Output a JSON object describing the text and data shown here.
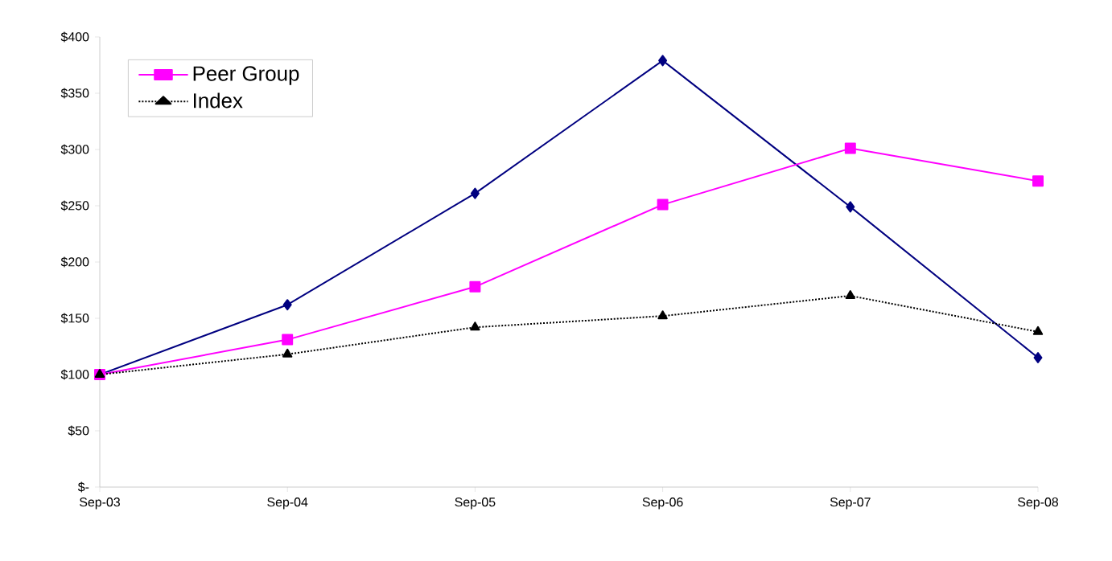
{
  "chart_data": {
    "type": "line",
    "categories": [
      "Sep-03",
      "Sep-04",
      "Sep-05",
      "Sep-06",
      "Sep-07",
      "Sep-08"
    ],
    "series": [
      {
        "color": "#000080",
        "marker": "diamond",
        "line_style": "solid",
        "values": [
          100,
          162,
          261,
          379,
          249,
          115
        ]
      },
      {
        "name": "Peer Group",
        "color": "#ff00ff",
        "marker": "square",
        "line_style": "solid",
        "values": [
          100,
          131,
          178,
          251,
          301,
          272
        ]
      },
      {
        "name": "Index",
        "color": "#000000",
        "marker": "triangle",
        "line_style": "dotted",
        "values": [
          100,
          118,
          142,
          152,
          170,
          138
        ]
      }
    ],
    "ylim": [
      0,
      400
    ],
    "yticks": [
      {
        "value": 0,
        "label": "$-"
      },
      {
        "value": 50,
        "label": "$50"
      },
      {
        "value": 100,
        "label": "$100"
      },
      {
        "value": 150,
        "label": "$150"
      },
      {
        "value": 200,
        "label": "$200"
      },
      {
        "value": 250,
        "label": "$250"
      },
      {
        "value": 300,
        "label": "$300"
      },
      {
        "value": 350,
        "label": "$350"
      },
      {
        "value": 400,
        "label": "$400"
      }
    ],
    "legend": "top left",
    "grid": false
  }
}
